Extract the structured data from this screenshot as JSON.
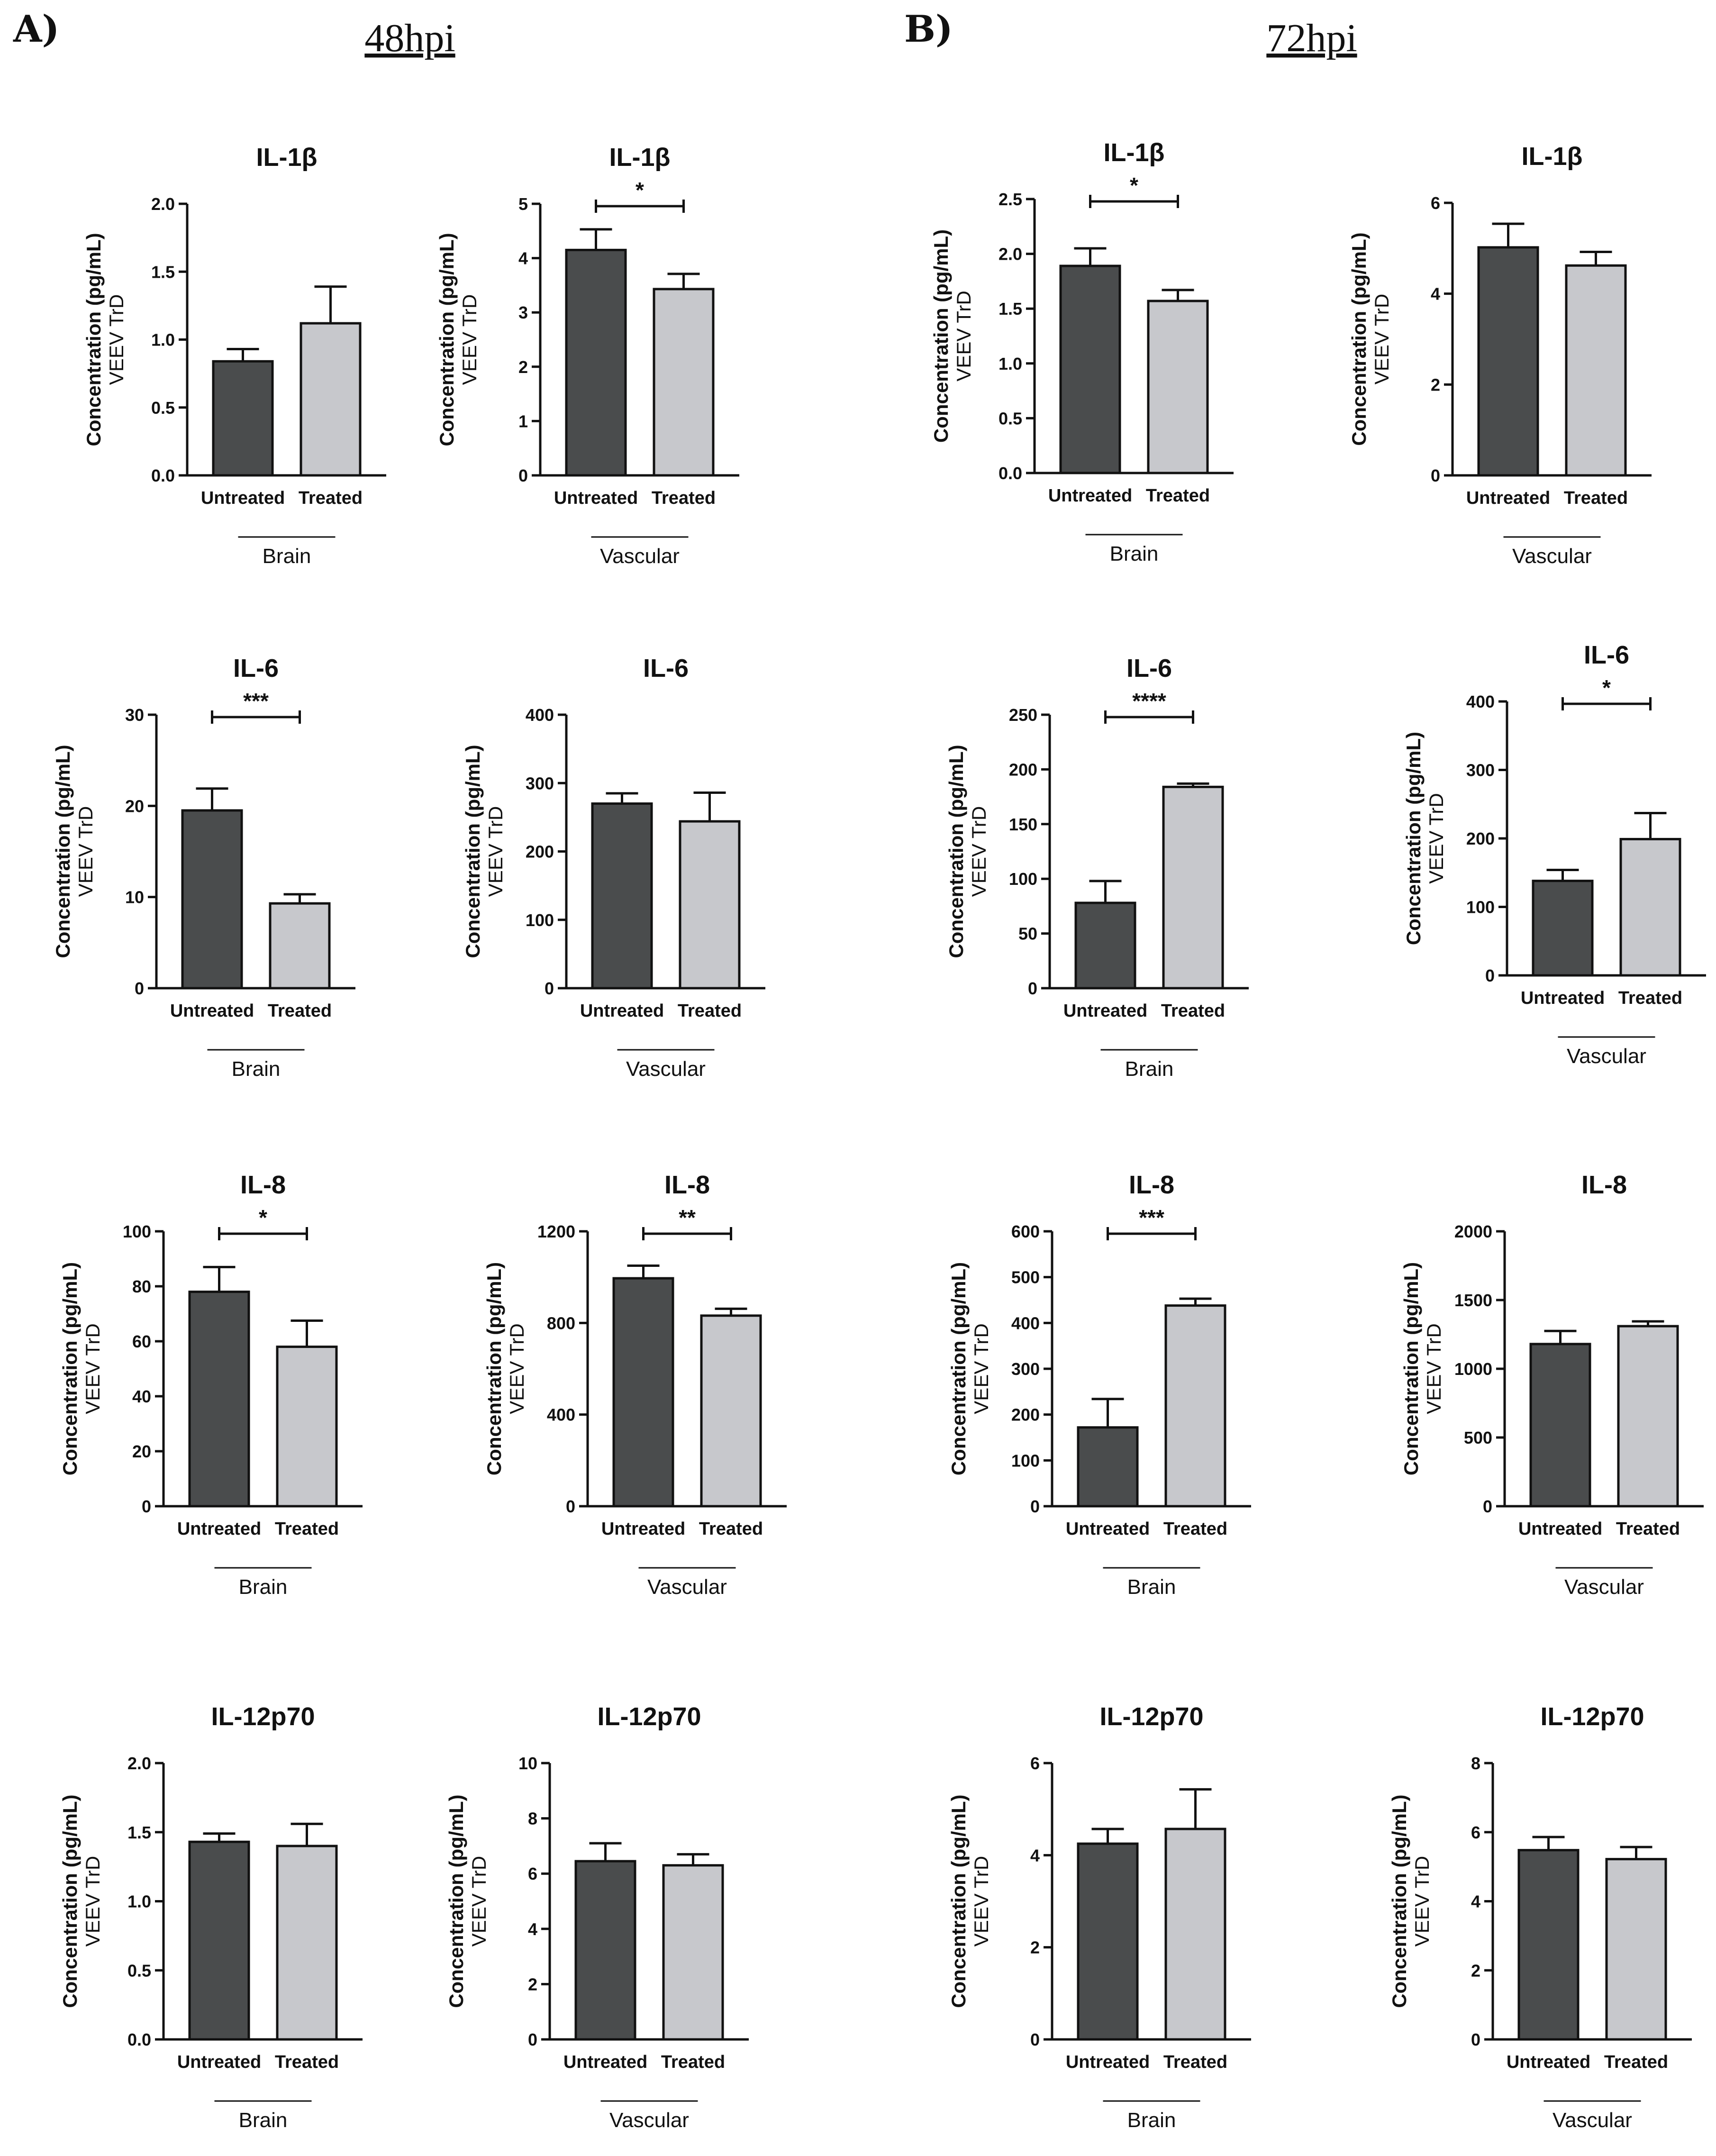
{
  "figure": {
    "section_a_label": "A)",
    "section_a_title": "48hpi",
    "section_b_label": "B)",
    "section_b_title": "72hpi"
  },
  "colors": {
    "untreated": "#4a4c4d",
    "treated": "#c7c8cc",
    "axis": "#111111"
  },
  "chart_data": [
    {
      "type": "bar",
      "title": "IL-1β",
      "ylabel": "Concentration (pg/mL)",
      "ylabel2": "VEEV TrD",
      "categories": [
        "Untreated",
        "Treated"
      ],
      "values": [
        0.84,
        1.12
      ],
      "errors": [
        0.09,
        0.27
      ],
      "ylim": [
        0,
        2.0
      ],
      "yticks": [
        "0.0",
        "0.5",
        "1.0",
        "1.5",
        "2.0"
      ],
      "group_label": "Brain",
      "significance": ""
    },
    {
      "type": "bar",
      "title": "IL-1β",
      "ylabel": "Concentration (pg/mL)",
      "ylabel2": "VEEV TrD",
      "categories": [
        "Untreated",
        "Treated"
      ],
      "values": [
        4.15,
        3.43
      ],
      "errors": [
        0.38,
        0.28
      ],
      "ylim": [
        0,
        5
      ],
      "yticks": [
        "0",
        "1",
        "2",
        "3",
        "4",
        "5"
      ],
      "group_label": "Vascular",
      "significance": "*"
    },
    {
      "type": "bar",
      "title": "IL-1β",
      "ylabel": "Concentration (pg/mL)",
      "ylabel2": "VEEV TrD",
      "categories": [
        "Untreated",
        "Treated"
      ],
      "values": [
        1.89,
        1.57
      ],
      "errors": [
        0.16,
        0.1
      ],
      "ylim": [
        0,
        2.5
      ],
      "yticks": [
        "0.0",
        "0.5",
        "1.0",
        "1.5",
        "2.0",
        "2.5"
      ],
      "group_label": "Brain",
      "significance": "*"
    },
    {
      "type": "bar",
      "title": "IL-1β",
      "ylabel": "Concentration (pg/mL)",
      "ylabel2": "VEEV TrD",
      "categories": [
        "Untreated",
        "Treated"
      ],
      "values": [
        5.02,
        4.62
      ],
      "errors": [
        0.52,
        0.3
      ],
      "ylim": [
        0,
        6
      ],
      "yticks": [
        "0",
        "2",
        "4",
        "6"
      ],
      "group_label": "Vascular",
      "significance": ""
    },
    {
      "type": "bar",
      "title": "IL-6",
      "ylabel": "Concentration (pg/mL)",
      "ylabel2": "VEEV TrD",
      "categories": [
        "Untreated",
        "Treated"
      ],
      "values": [
        19.5,
        9.3
      ],
      "errors": [
        2.4,
        1.0
      ],
      "ylim": [
        0,
        30
      ],
      "yticks": [
        "0",
        "10",
        "20",
        "30"
      ],
      "group_label": "Brain",
      "significance": "***"
    },
    {
      "type": "bar",
      "title": "IL-6",
      "ylabel": "Concentration (pg/mL)",
      "ylabel2": "VEEV TrD",
      "categories": [
        "Untreated",
        "Treated"
      ],
      "values": [
        270,
        244
      ],
      "errors": [
        15,
        42
      ],
      "ylim": [
        0,
        400
      ],
      "yticks": [
        "0",
        "100",
        "200",
        "300",
        "400"
      ],
      "group_label": "Vascular",
      "significance": ""
    },
    {
      "type": "bar",
      "title": "IL-6",
      "ylabel": "Concentration (pg/mL)",
      "ylabel2": "VEEV TrD",
      "categories": [
        "Untreated",
        "Treated"
      ],
      "values": [
        78,
        184
      ],
      "errors": [
        20,
        3
      ],
      "ylim": [
        0,
        250
      ],
      "yticks": [
        "0",
        "50",
        "100",
        "150",
        "200",
        "250"
      ],
      "group_label": "Brain",
      "significance": "****"
    },
    {
      "type": "bar",
      "title": "IL-6",
      "ylabel": "Concentration (pg/mL)",
      "ylabel2": "VEEV TrD",
      "categories": [
        "Untreated",
        "Treated"
      ],
      "values": [
        138,
        199
      ],
      "errors": [
        16,
        38
      ],
      "ylim": [
        0,
        400
      ],
      "yticks": [
        "0",
        "100",
        "200",
        "300",
        "400"
      ],
      "group_label": "Vascular",
      "significance": "*"
    },
    {
      "type": "bar",
      "title": "IL-8",
      "ylabel": "Concentration (pg/mL)",
      "ylabel2": "VEEV TrD",
      "categories": [
        "Untreated",
        "Treated"
      ],
      "values": [
        78,
        58
      ],
      "errors": [
        9,
        9.5
      ],
      "ylim": [
        0,
        100
      ],
      "yticks": [
        "0",
        "20",
        "40",
        "60",
        "80",
        "100"
      ],
      "group_label": "Brain",
      "significance": "*"
    },
    {
      "type": "bar",
      "title": "IL-8",
      "ylabel": "Concentration (pg/mL)",
      "ylabel2": "VEEV TrD",
      "categories": [
        "Untreated",
        "Treated"
      ],
      "values": [
        995,
        832
      ],
      "errors": [
        55,
        30
      ],
      "ylim": [
        0,
        1200
      ],
      "yticks": [
        "0",
        "400",
        "800",
        "1200"
      ],
      "group_label": "Vascular",
      "significance": "**"
    },
    {
      "type": "bar",
      "title": "IL-8",
      "ylabel": "Concentration (pg/mL)",
      "ylabel2": "VEEV TrD",
      "categories": [
        "Untreated",
        "Treated"
      ],
      "values": [
        172,
        438
      ],
      "errors": [
        62,
        15
      ],
      "ylim": [
        0,
        600
      ],
      "yticks": [
        "0",
        "100",
        "200",
        "300",
        "400",
        "500",
        "600"
      ],
      "group_label": "Brain",
      "significance": "***"
    },
    {
      "type": "bar",
      "title": "IL-8",
      "ylabel": "Concentration (pg/mL)",
      "ylabel2": "VEEV TrD",
      "categories": [
        "Untreated",
        "Treated"
      ],
      "values": [
        1180,
        1310
      ],
      "errors": [
        95,
        35
      ],
      "ylim": [
        0,
        2000
      ],
      "yticks": [
        "0",
        "500",
        "1000",
        "1500",
        "2000"
      ],
      "group_label": "Vascular",
      "significance": ""
    },
    {
      "type": "bar",
      "title": "IL-12p70",
      "ylabel": "Concentration (pg/mL)",
      "ylabel2": "VEEV TrD",
      "categories": [
        "Untreated",
        "Treated"
      ],
      "values": [
        1.43,
        1.4
      ],
      "errors": [
        0.06,
        0.16
      ],
      "ylim": [
        0,
        2.0
      ],
      "yticks": [
        "0.0",
        "0.5",
        "1.0",
        "1.5",
        "2.0"
      ],
      "group_label": "Brain",
      "significance": ""
    },
    {
      "type": "bar",
      "title": "IL-12p70",
      "ylabel": "Concentration (pg/mL)",
      "ylabel2": "VEEV TrD",
      "categories": [
        "Untreated",
        "Treated"
      ],
      "values": [
        6.45,
        6.3
      ],
      "errors": [
        0.65,
        0.4
      ],
      "ylim": [
        0,
        10
      ],
      "yticks": [
        "0",
        "2",
        "4",
        "6",
        "8",
        "10"
      ],
      "group_label": "Vascular",
      "significance": ""
    },
    {
      "type": "bar",
      "title": "IL-12p70",
      "ylabel": "Concentration (pg/mL)",
      "ylabel2": "VEEV TrD",
      "categories": [
        "Untreated",
        "Treated"
      ],
      "values": [
        4.25,
        4.57
      ],
      "errors": [
        0.32,
        0.86
      ],
      "ylim": [
        0,
        6
      ],
      "yticks": [
        "0",
        "2",
        "4",
        "6"
      ],
      "group_label": "Brain",
      "significance": ""
    },
    {
      "type": "bar",
      "title": "IL-12p70",
      "ylabel": "Concentration (pg/mL)",
      "ylabel2": "VEEV TrD",
      "categories": [
        "Untreated",
        "Treated"
      ],
      "values": [
        5.48,
        5.22
      ],
      "errors": [
        0.38,
        0.35
      ],
      "ylim": [
        0,
        8
      ],
      "yticks": [
        "0",
        "2",
        "4",
        "6",
        "8"
      ],
      "group_label": "Vascular",
      "significance": ""
    }
  ]
}
